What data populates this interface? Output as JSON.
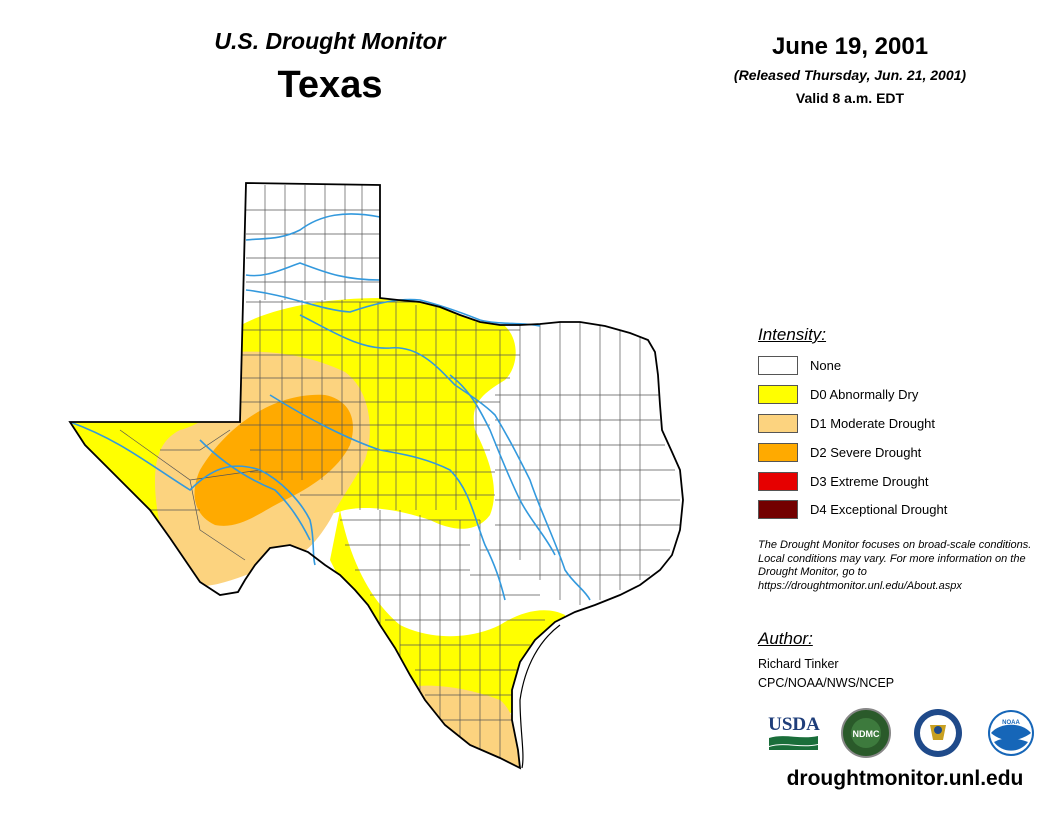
{
  "header": {
    "subtitle": "U.S. Drought Monitor",
    "title": "Texas",
    "date": "June 19, 2001",
    "released": "(Released Thursday, Jun. 21, 2001)",
    "valid": "Valid 8 a.m. EDT"
  },
  "legend": {
    "title": "Intensity:",
    "items": [
      {
        "label": "None",
        "color": "#ffffff"
      },
      {
        "label": "D0 Abnormally Dry",
        "color": "#ffff00"
      },
      {
        "label": "D1 Moderate Drought",
        "color": "#fcd37f"
      },
      {
        "label": "D2 Severe Drought",
        "color": "#ffaa00"
      },
      {
        "label": "D3 Extreme Drought",
        "color": "#e60000"
      },
      {
        "label": "D4 Exceptional Drought",
        "color": "#730000"
      }
    ]
  },
  "note": "The Drought Monitor focuses on broad-scale conditions. Local conditions may vary. For more information on the Drought Monitor, go to https://droughtmonitor.unl.edu/About.aspx",
  "author": {
    "title": "Author:",
    "name": "Richard Tinker",
    "org": "CPC/NOAA/NWS/NCEP"
  },
  "logos": {
    "usda": "USDA",
    "ndmc": "NDMC",
    "noaa": "NOAA"
  },
  "website": "droughtmonitor.unl.edu",
  "colors": {
    "river": "#3399dd",
    "border": "#000000",
    "county": "#555555"
  }
}
